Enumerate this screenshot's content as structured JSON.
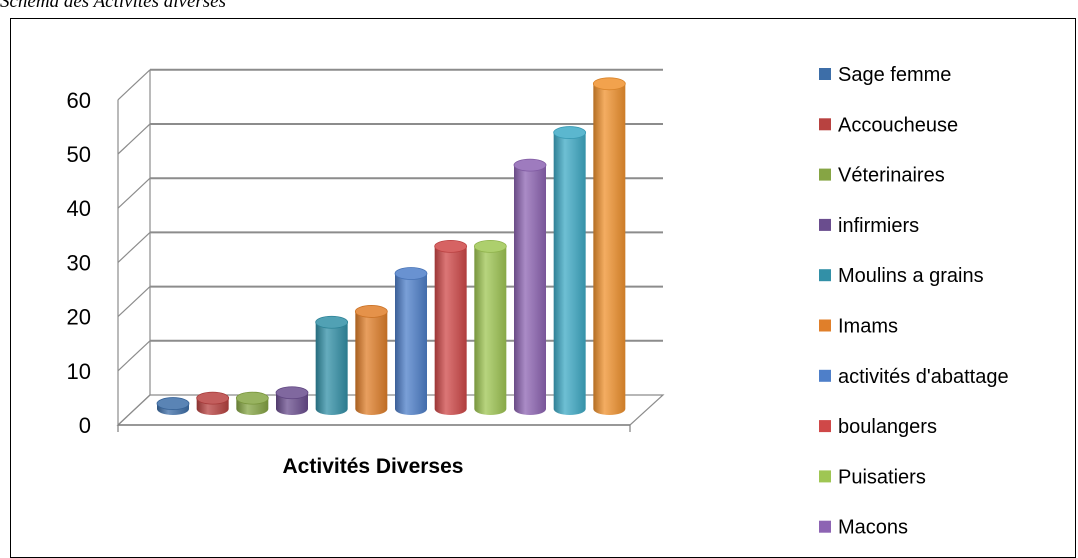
{
  "page": {
    "caption": "Schéma des Activités diverses"
  },
  "chart_data": {
    "type": "bar",
    "style": "3d-cylinder",
    "xlabel": "Activités Diverses",
    "ylabel": "",
    "ylim": [
      0,
      60
    ],
    "yticks": [
      0,
      10,
      20,
      30,
      40,
      50,
      60
    ],
    "grid": true,
    "legend_position": "right",
    "series": [
      {
        "name": "Sage femme",
        "value": 1,
        "color": "#3d6ea8"
      },
      {
        "name": "Accoucheuse",
        "value": 2,
        "color": "#b84240"
      },
      {
        "name": "Véterinaires",
        "value": 2,
        "color": "#86a544"
      },
      {
        "name": "infirmiers",
        "value": 3,
        "color": "#6a4d8e"
      },
      {
        "name": "Moulins a grains",
        "value": 16,
        "color": "#3290a7"
      },
      {
        "name": "Imams",
        "value": 18,
        "color": "#e07f2a"
      },
      {
        "name": "activités d'abattage",
        "value": 25,
        "color": "#4e7fc9"
      },
      {
        "name": "boulangers",
        "value": 30,
        "color": "#cf4848"
      },
      {
        "name": "Puisatiers",
        "value": 30,
        "color": "#9fc653"
      },
      {
        "name": "Macons",
        "value": 45,
        "color": "#8d64b3"
      },
      {
        "name": "",
        "value": 51,
        "color": "#3eaac6"
      },
      {
        "name": "",
        "value": 60,
        "color": "#f0922e"
      }
    ]
  }
}
